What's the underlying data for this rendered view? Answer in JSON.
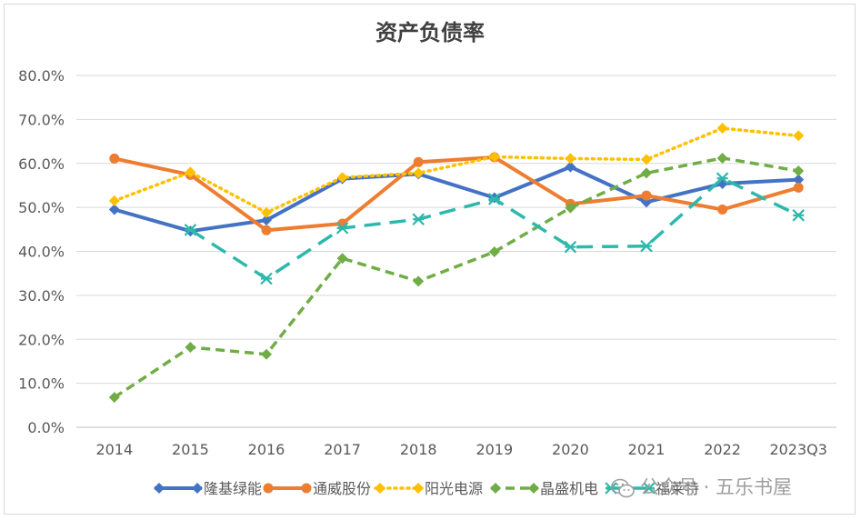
{
  "chart_data": {
    "type": "line",
    "title": "资产负债率",
    "xlabel": "",
    "ylabel": "",
    "categories": [
      "2014",
      "2015",
      "2016",
      "2017",
      "2018",
      "2019",
      "2020",
      "2021",
      "2022",
      "2023Q3"
    ],
    "ylim": [
      0,
      80
    ],
    "yticks": [
      "0.0%",
      "10.0%",
      "20.0%",
      "30.0%",
      "40.0%",
      "50.0%",
      "60.0%",
      "70.0%",
      "80.0%"
    ],
    "grid": true,
    "legend_position": "bottom",
    "series": [
      {
        "name": "隆基绿能",
        "color": "#4472C4",
        "dash": "solid",
        "marker": "diamond",
        "values": [
          49.5,
          44.6,
          47.1,
          56.5,
          57.6,
          52.2,
          59.2,
          51.2,
          55.4,
          56.3
        ]
      },
      {
        "name": "通威股份",
        "color": "#ED7D31",
        "dash": "solid",
        "marker": "circle",
        "values": [
          61.1,
          57.4,
          44.8,
          46.3,
          60.3,
          61.4,
          50.8,
          52.7,
          49.5,
          54.5
        ]
      },
      {
        "name": "阳光电源",
        "color": "#FFC000",
        "dash": "dot",
        "marker": "diamond",
        "values": [
          51.5,
          58.0,
          48.8,
          56.8,
          57.8,
          61.5,
          61.1,
          60.9,
          68.0,
          66.3
        ]
      },
      {
        "name": "晶盛机电",
        "color": "#70AD47",
        "dash": "dash",
        "marker": "diamond",
        "values": [
          6.8,
          18.2,
          16.6,
          38.4,
          33.2,
          39.9,
          49.9,
          57.8,
          61.2,
          58.3
        ]
      },
      {
        "name": "福莱特",
        "color": "#2EB8AC",
        "dash": "longdash",
        "marker": "star",
        "values": [
          null,
          44.9,
          33.8,
          45.3,
          47.3,
          51.9,
          41.0,
          41.2,
          56.6,
          48.2
        ]
      }
    ]
  },
  "watermark": {
    "text": "公众号 · 五乐书屋"
  }
}
